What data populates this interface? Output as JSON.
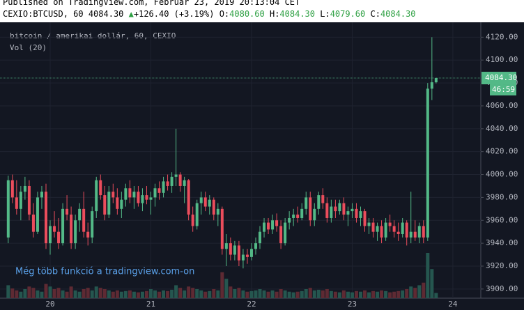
{
  "chart_data": {
    "type": "candlestick",
    "published": "Published on TradingView.com, Februar 23, 2019 20:13:04 CET",
    "symbol": "CEXIO:BTCUSD, 60",
    "last_label": "4084.30",
    "change": "+126.40 (+3.19%)",
    "ohlc": [
      {
        "label": "O:",
        "value": "4080.60"
      },
      {
        "label": "H:",
        "value": "4084.30"
      },
      {
        "label": "L:",
        "value": "4079.60"
      },
      {
        "label": "C:",
        "value": "4084.30"
      }
    ],
    "legend_title": "bitcoin / amerikai dollár, 60, CEXIO",
    "volume_label": "Vol (20)",
    "watermark": "Még több funkció a tradingview.com-on",
    "countdown": "46:59",
    "up_color": "#53b987",
    "down_color": "#eb4d5c",
    "up_volume_color": "#25564f",
    "down_volume_color": "#5e2a33",
    "grid": true,
    "categories": [
      null,
      null,
      null,
      null,
      null,
      null,
      null,
      null,
      null,
      null,
      "20",
      null,
      null,
      null,
      null,
      null,
      null,
      null,
      null,
      null,
      null,
      null,
      null,
      null,
      null,
      null,
      null,
      null,
      null,
      null,
      null,
      null,
      null,
      null,
      "21",
      null,
      null,
      null,
      null,
      null,
      null,
      null,
      null,
      null,
      null,
      null,
      null,
      null,
      null,
      null,
      null,
      null,
      null,
      null,
      null,
      null,
      null,
      null,
      "22",
      null,
      null,
      null,
      null,
      null,
      null,
      null,
      null,
      null,
      null,
      null,
      null,
      null,
      null,
      null,
      null,
      null,
      null,
      null,
      null,
      null,
      null,
      null,
      "23",
      null,
      null,
      null,
      null,
      null,
      null,
      null,
      null,
      null,
      null,
      null,
      null,
      null,
      null,
      null,
      null,
      null,
      null,
      null,
      null,
      null,
      null,
      null,
      "24",
      null,
      null,
      null
    ],
    "open": [
      3945,
      3995,
      3980,
      3970,
      3985,
      3990,
      3965,
      3950,
      3980,
      3985,
      3940,
      3955,
      3950,
      3940,
      3970,
      3965,
      3940,
      3960,
      3970,
      3950,
      3945,
      3968,
      3995,
      3982,
      3965,
      3985,
      3980,
      3970,
      3978,
      3988,
      3980,
      3985,
      3975,
      3982,
      3978,
      3980,
      3988,
      3984,
      3994,
      3990,
      3998,
      4000,
      3990,
      3995,
      3965,
      3955,
      3975,
      3980,
      3972,
      3978,
      3965,
      3970,
      3935,
      3940,
      3930,
      3938,
      3925,
      3930,
      3928,
      3935,
      3940,
      3950,
      3958,
      3952,
      3960,
      3955,
      3940,
      3958,
      3962,
      3965,
      3962,
      3970,
      3980,
      3960,
      3970,
      3982,
      3975,
      3962,
      3972,
      3968,
      3975,
      3965,
      3968,
      3970,
      3962,
      3968,
      3955,
      3958,
      3950,
      3955,
      3945,
      3958,
      3955,
      3950,
      3948,
      3958,
      3945,
      3950,
      3945,
      3955,
      3945,
      4075,
      4080.6,
      null,
      null,
      null,
      null,
      null,
      null,
      null
    ],
    "high": [
      3999,
      4000,
      3995,
      3990,
      3998,
      3995,
      3975,
      3985,
      3990,
      3992,
      3960,
      3968,
      3962,
      3975,
      3982,
      3972,
      3965,
      3975,
      3985,
      3958,
      3972,
      3998,
      4000,
      3990,
      3990,
      3992,
      3988,
      3985,
      3992,
      3995,
      3990,
      3990,
      3988,
      3990,
      3985,
      3992,
      3994,
      3998,
      4000,
      4002,
      4040,
      4002,
      3998,
      3996,
      3972,
      3978,
      3985,
      3985,
      3982,
      3980,
      3975,
      3972,
      3948,
      3945,
      3942,
      3942,
      3935,
      3935,
      3940,
      3945,
      3955,
      3962,
      3962,
      3965,
      3966,
      3960,
      3962,
      3968,
      3970,
      3972,
      3975,
      3985,
      3985,
      3975,
      3985,
      3988,
      3980,
      3978,
      3978,
      3978,
      3980,
      3972,
      3975,
      3975,
      3972,
      3970,
      3962,
      3962,
      3958,
      3960,
      3962,
      3965,
      3960,
      3958,
      3962,
      3960,
      3985,
      3960,
      3958,
      3960,
      4080,
      4120,
      4084.3,
      null,
      null,
      null,
      null,
      null,
      null,
      null
    ],
    "low": [
      3940,
      3975,
      3965,
      3960,
      3978,
      3960,
      3945,
      3948,
      3970,
      3935,
      3930,
      3945,
      3935,
      3938,
      3960,
      3935,
      3935,
      3950,
      3945,
      3938,
      3940,
      3962,
      3978,
      3960,
      3962,
      3975,
      3965,
      3962,
      3972,
      3975,
      3970,
      3972,
      3968,
      3974,
      3965,
      3972,
      3978,
      3980,
      3986,
      3984,
      3990,
      3985,
      3975,
      3960,
      3950,
      3952,
      3965,
      3968,
      3965,
      3960,
      3955,
      3930,
      3920,
      3925,
      3925,
      3920,
      3918,
      3922,
      3925,
      3930,
      3935,
      3945,
      3948,
      3948,
      3950,
      3935,
      3938,
      3952,
      3955,
      3958,
      3960,
      3965,
      3955,
      3955,
      3965,
      3970,
      3958,
      3958,
      3962,
      3965,
      3960,
      3955,
      3962,
      3958,
      3955,
      3950,
      3948,
      3945,
      3942,
      3940,
      3942,
      3950,
      3945,
      3942,
      3945,
      3938,
      3940,
      3942,
      3940,
      3940,
      3942,
      4065,
      4079.6,
      null,
      null,
      null,
      null,
      null,
      null,
      null
    ],
    "close": [
      3995,
      3980,
      3970,
      3985,
      3990,
      3965,
      3950,
      3980,
      3985,
      3940,
      3955,
      3950,
      3940,
      3970,
      3965,
      3940,
      3960,
      3970,
      3950,
      3945,
      3968,
      3995,
      3982,
      3965,
      3985,
      3980,
      3970,
      3978,
      3988,
      3980,
      3985,
      3975,
      3982,
      3978,
      3980,
      3988,
      3984,
      3994,
      3990,
      3998,
      4000,
      3990,
      3995,
      3965,
      3955,
      3975,
      3980,
      3972,
      3978,
      3965,
      3970,
      3935,
      3940,
      3930,
      3938,
      3925,
      3930,
      3928,
      3935,
      3940,
      3950,
      3958,
      3952,
      3960,
      3955,
      3940,
      3958,
      3962,
      3965,
      3962,
      3970,
      3980,
      3960,
      3970,
      3982,
      3975,
      3962,
      3972,
      3968,
      3975,
      3965,
      3968,
      3970,
      3962,
      3968,
      3955,
      3958,
      3950,
      3955,
      3945,
      3958,
      3955,
      3950,
      3948,
      3958,
      3945,
      3950,
      3945,
      3955,
      3945,
      4075,
      4080.6,
      4084.3,
      null,
      null,
      null,
      null,
      null,
      null,
      null
    ],
    "volume": [
      20,
      15,
      12,
      10,
      14,
      18,
      16,
      12,
      10,
      22,
      18,
      14,
      16,
      12,
      10,
      18,
      12,
      10,
      14,
      16,
      12,
      18,
      16,
      14,
      12,
      10,
      12,
      10,
      11,
      12,
      10,
      9,
      10,
      11,
      14,
      12,
      10,
      12,
      11,
      13,
      20,
      16,
      12,
      18,
      16,
      14,
      12,
      10,
      11,
      14,
      12,
      40,
      30,
      18,
      14,
      16,
      12,
      10,
      11,
      12,
      14,
      12,
      10,
      12,
      10,
      14,
      12,
      10,
      9,
      10,
      11,
      14,
      16,
      12,
      13,
      12,
      14,
      11,
      10,
      9,
      12,
      10,
      9,
      11,
      10,
      12,
      9,
      11,
      10,
      12,
      11,
      9,
      10,
      11,
      12,
      14,
      18,
      16,
      20,
      24,
      70,
      45,
      8,
      null,
      null,
      null,
      null,
      null,
      null,
      null
    ],
    "ylim": [
      3892,
      4133
    ],
    "yticks": [
      {
        "value": 3900,
        "label": "3900.00"
      },
      {
        "value": 3920,
        "label": "3920.00"
      },
      {
        "value": 3940,
        "label": "3940.00"
      },
      {
        "value": 3960,
        "label": "3960.00"
      },
      {
        "value": 3980,
        "label": "3980.00"
      },
      {
        "value": 4000,
        "label": "4000.00"
      },
      {
        "value": 4020,
        "label": "4020.00"
      },
      {
        "value": 4040,
        "label": "4040.00"
      },
      {
        "value": 4060,
        "label": "4060.00"
      },
      {
        "value": 4080,
        "label": "4080.00"
      },
      {
        "value": 4100,
        "label": "4100.00"
      },
      {
        "value": 4120,
        "label": "4120.00"
      }
    ]
  }
}
